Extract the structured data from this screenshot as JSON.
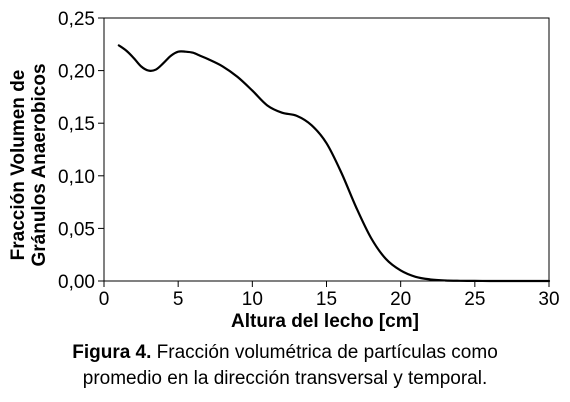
{
  "chart_data": {
    "type": "line",
    "xlabel": "Altura del lecho [cm]",
    "ylabel_lines": [
      "Fracción Volumen de",
      "Gránulos Anaerobicos"
    ],
    "xlim": [
      0,
      30
    ],
    "ylim": [
      0,
      0.25
    ],
    "x_ticks": [
      0,
      5,
      10,
      15,
      20,
      25,
      30
    ],
    "y_ticks": [
      0.0,
      0.05,
      0.1,
      0.15,
      0.2,
      0.25
    ],
    "x_tick_labels": [
      "0",
      "5",
      "10",
      "15",
      "20",
      "25",
      "30"
    ],
    "y_tick_labels": [
      "0,00",
      "0,05",
      "0,10",
      "0,15",
      "0,20",
      "0,25"
    ],
    "grid": false,
    "line_color": "#000000",
    "series": [
      {
        "x": [
          1.0,
          1.5,
          2.0,
          2.5,
          3.0,
          3.5,
          4.0,
          4.5,
          5.0,
          5.5,
          6.0,
          6.5,
          7.0,
          8.0,
          9.0,
          10.0,
          11.0,
          12.0,
          13.0,
          14.0,
          15.0,
          16.0,
          17.0,
          18.0,
          19.0,
          20.0,
          21.0,
          22.0,
          23.0,
          24.0,
          25.0,
          26.0,
          27.0,
          28.0,
          30.0
        ],
        "y": [
          0.224,
          0.219,
          0.212,
          0.204,
          0.2,
          0.201,
          0.207,
          0.214,
          0.218,
          0.218,
          0.217,
          0.214,
          0.211,
          0.204,
          0.194,
          0.181,
          0.167,
          0.16,
          0.157,
          0.148,
          0.131,
          0.103,
          0.07,
          0.041,
          0.021,
          0.01,
          0.004,
          0.0015,
          0.0005,
          0.0002,
          0.0001,
          0.0,
          0.0,
          0.0,
          0.0
        ]
      }
    ]
  },
  "caption": {
    "label": "Figura 4.",
    "line1": " Fracción volumétrica de partículas como",
    "line2": "promedio en la dirección transversal y temporal."
  }
}
